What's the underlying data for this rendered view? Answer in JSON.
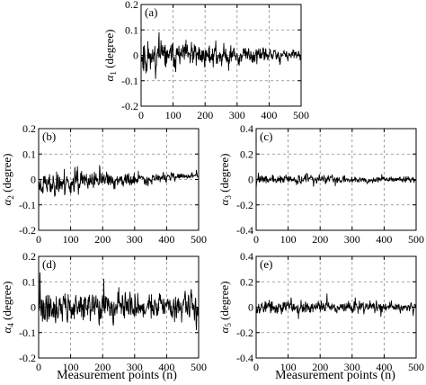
{
  "figure": {
    "xlabel_bottom": "Measurement points (n)"
  },
  "chart_data": [
    {
      "type": "line",
      "panel_label": "(a)",
      "ylabel": "α1 (degree)",
      "ylabel_base": "α",
      "ylabel_sub": "1",
      "ylabel_unit": " (degree)",
      "xlim": [
        0,
        500
      ],
      "ylim": [
        -0.2,
        0.2
      ],
      "xticks": [
        0,
        100,
        200,
        300,
        400,
        500
      ],
      "yticks": [
        -0.2,
        -0.1,
        0,
        0.1,
        0.2
      ],
      "ytick_labels": [
        "-0.2",
        "-0.1",
        "0",
        "0.1",
        "0.2"
      ],
      "grid": true,
      "series": [
        {
          "n_points": 500,
          "amplitude_start": 0.1,
          "amplitude_end": 0.03,
          "offset": 0.0,
          "seed": 11
        }
      ]
    },
    {
      "type": "line",
      "panel_label": "(b)",
      "ylabel": "α2 (degree)",
      "ylabel_base": "α",
      "ylabel_sub": "2",
      "ylabel_unit": " (degree)",
      "xlim": [
        0,
        500
      ],
      "ylim": [
        -0.2,
        0.2
      ],
      "xticks": [
        0,
        100,
        200,
        300,
        400,
        500
      ],
      "yticks": [
        -0.2,
        -0.1,
        0,
        0.1,
        0.2
      ],
      "ytick_labels": [
        "-0.2",
        "-0.1",
        "0",
        "0.1",
        "0.2"
      ],
      "grid": true,
      "series": [
        {
          "n_points": 500,
          "amplitude_start": 0.08,
          "amplitude_end": 0.015,
          "offset_start": -0.02,
          "offset_end": 0.015,
          "seed": 23
        }
      ]
    },
    {
      "type": "line",
      "panel_label": "(c)",
      "ylabel": "α3 (degree)",
      "ylabel_base": "α",
      "ylabel_sub": "3",
      "ylabel_unit": " (degree)",
      "xlim": [
        0,
        500
      ],
      "ylim": [
        -0.4,
        0.4
      ],
      "xticks": [
        0,
        100,
        200,
        300,
        400,
        500
      ],
      "yticks": [
        -0.4,
        -0.2,
        0,
        0.2,
        0.4
      ],
      "ytick_labels": [
        "-0.4",
        "-0.2",
        "0",
        "0.2",
        "0.4"
      ],
      "grid": true,
      "series": [
        {
          "n_points": 500,
          "amplitude_start": 0.06,
          "amplitude_end": 0.035,
          "offset": 0.0,
          "seed": 37
        }
      ]
    },
    {
      "type": "line",
      "panel_label": "(d)",
      "ylabel": "α4 (degree)",
      "ylabel_base": "α",
      "ylabel_sub": "4",
      "ylabel_unit": " (degree)",
      "xlim": [
        0,
        500
      ],
      "ylim": [
        -0.2,
        0.2
      ],
      "xticks": [
        0,
        100,
        200,
        300,
        400,
        500
      ],
      "yticks": [
        -0.2,
        -0.1,
        0,
        0.1,
        0.2
      ],
      "ytick_labels": [
        "-0.2",
        "-0.1",
        "0",
        "0.1",
        "0.2"
      ],
      "grid": true,
      "series": [
        {
          "n_points": 500,
          "amplitude_start": 0.1,
          "amplitude_end": 0.075,
          "offset": 0.0,
          "seed": 41
        }
      ]
    },
    {
      "type": "line",
      "panel_label": "(e)",
      "ylabel": "α5 (degree)",
      "ylabel_base": "α",
      "ylabel_sub": "5",
      "ylabel_unit": " (degree)",
      "xlim": [
        0,
        500
      ],
      "ylim": [
        -0.4,
        0.4
      ],
      "xticks": [
        0,
        100,
        200,
        300,
        400,
        500
      ],
      "yticks": [
        -0.4,
        -0.2,
        0,
        0.2,
        0.4
      ],
      "ytick_labels": [
        "-0.4",
        "-0.2",
        "0",
        "0.2",
        "0.4"
      ],
      "grid": true,
      "series": [
        {
          "n_points": 500,
          "amplitude_start": 0.09,
          "amplitude_end": 0.06,
          "offset": 0.0,
          "seed": 53
        }
      ]
    }
  ]
}
